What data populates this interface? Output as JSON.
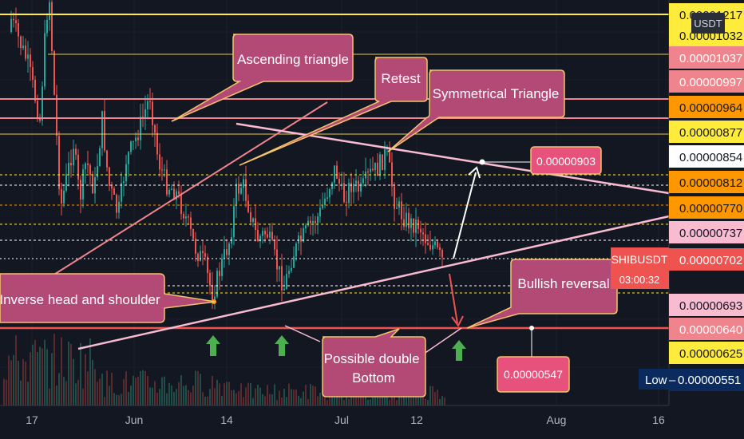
{
  "chart_data": {
    "type": "candlestick",
    "symbol": "SHIBUSDT",
    "currency": "USDT",
    "countdown": "03:00:32",
    "last_price": 7.02e-06,
    "low_label": "Low",
    "low_price": "0.00000551",
    "x_ticks": [
      "17",
      "Jun",
      "14",
      "Jul",
      "12",
      "Aug",
      "16"
    ],
    "price_labels": [
      {
        "text": "0.00001217",
        "bg": "#ffeb3b",
        "fg": "#131722"
      },
      {
        "text": "0.00001032",
        "bg": "#ffeb3b",
        "fg": "#131722"
      },
      {
        "text": "0.00001037",
        "bg": "#f0848c",
        "fg": "#ffffff"
      },
      {
        "text": "0.00000997",
        "bg": "#f0848c",
        "fg": "#ffffff"
      },
      {
        "text": "0.00000964",
        "bg": "#ff9800",
        "fg": "#131722"
      },
      {
        "text": "0.00000877",
        "bg": "#ffeb3b",
        "fg": "#131722"
      },
      {
        "text": "0.00000854",
        "bg": "#ffffff",
        "fg": "#131722"
      },
      {
        "text": "0.00000812",
        "bg": "#ff9800",
        "fg": "#131722"
      },
      {
        "text": "0.00000770",
        "bg": "#ff9800",
        "fg": "#131722"
      },
      {
        "text": "0.00000737",
        "bg": "#f8bbd0",
        "fg": "#131722"
      },
      {
        "text": "0.00000702",
        "bg": "#ef5350",
        "fg": "#ffffff"
      },
      {
        "text": "0.00000693",
        "bg": "#f8bbd0",
        "fg": "#131722"
      },
      {
        "text": "0.00000640",
        "bg": "#f0848c",
        "fg": "#ffffff"
      },
      {
        "text": "0.00000625",
        "bg": "#ffeb3b",
        "fg": "#131722"
      },
      {
        "text": "0.00000551",
        "bg": "#0b2a5e",
        "fg": "#ffffff"
      }
    ],
    "annotations": [
      "Ascending triangle",
      "Retest",
      "Symmetrical Triangle",
      "Inverse head and shoulder",
      "Bullish reversal",
      "Possible double\n Bottom"
    ],
    "price_callouts": [
      "0.00000903",
      "0.00000547"
    ]
  },
  "colors": {
    "background": "#131722",
    "callout_fill": "#b24a75",
    "callout_border": "#f5c36b",
    "up_candle": "#26a69a",
    "down_candle": "#ef5350",
    "trendline_pink": "#f8bbd0",
    "support_red": "#ef5350",
    "arrow_green": "#4caf50"
  }
}
